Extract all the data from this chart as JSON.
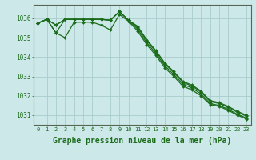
{
  "background_color": "#cce8e8",
  "grid_color": "#aacccc",
  "line_color": "#1a6b1a",
  "marker_color": "#1a6b1a",
  "xlabel": "Graphe pression niveau de la mer (hPa)",
  "xlabel_fontsize": 7,
  "xlim": [
    -0.5,
    23.5
  ],
  "ylim": [
    1030.5,
    1036.7
  ],
  "yticks": [
    1031,
    1032,
    1033,
    1034,
    1035,
    1036
  ],
  "xticks": [
    0,
    1,
    2,
    3,
    4,
    5,
    6,
    7,
    8,
    9,
    10,
    11,
    12,
    13,
    14,
    15,
    16,
    17,
    18,
    19,
    20,
    21,
    22,
    23
  ],
  "series": [
    [
      1035.75,
      1035.95,
      1035.65,
      1035.95,
      1035.95,
      1035.95,
      1035.95,
      1035.95,
      1035.9,
      1036.35,
      1035.9,
      1035.6,
      1034.9,
      1034.35,
      1033.7,
      1033.25,
      1032.75,
      1032.55,
      1032.25,
      1031.75,
      1031.65,
      1031.45,
      1031.2,
      1031.0
    ],
    [
      1035.75,
      1035.95,
      1035.65,
      1035.95,
      1035.95,
      1035.95,
      1035.95,
      1035.95,
      1035.9,
      1036.35,
      1035.9,
      1035.55,
      1034.85,
      1034.3,
      1033.65,
      1033.2,
      1032.7,
      1032.5,
      1032.2,
      1031.7,
      1031.6,
      1031.4,
      1031.15,
      1030.95
    ],
    [
      1035.75,
      1035.95,
      1035.25,
      1035.95,
      1035.95,
      1035.95,
      1035.95,
      1035.95,
      1035.9,
      1036.35,
      1035.9,
      1035.45,
      1034.75,
      1034.2,
      1033.55,
      1033.1,
      1032.6,
      1032.4,
      1032.1,
      1031.6,
      1031.5,
      1031.3,
      1031.05,
      1030.85
    ],
    [
      1035.75,
      1035.95,
      1035.25,
      1035.0,
      1035.8,
      1035.8,
      1035.8,
      1035.65,
      1035.4,
      1036.2,
      1035.85,
      1035.35,
      1034.65,
      1034.1,
      1033.45,
      1033.0,
      1032.5,
      1032.3,
      1032.0,
      1031.55,
      1031.45,
      1031.25,
      1031.0,
      1030.8
    ]
  ]
}
